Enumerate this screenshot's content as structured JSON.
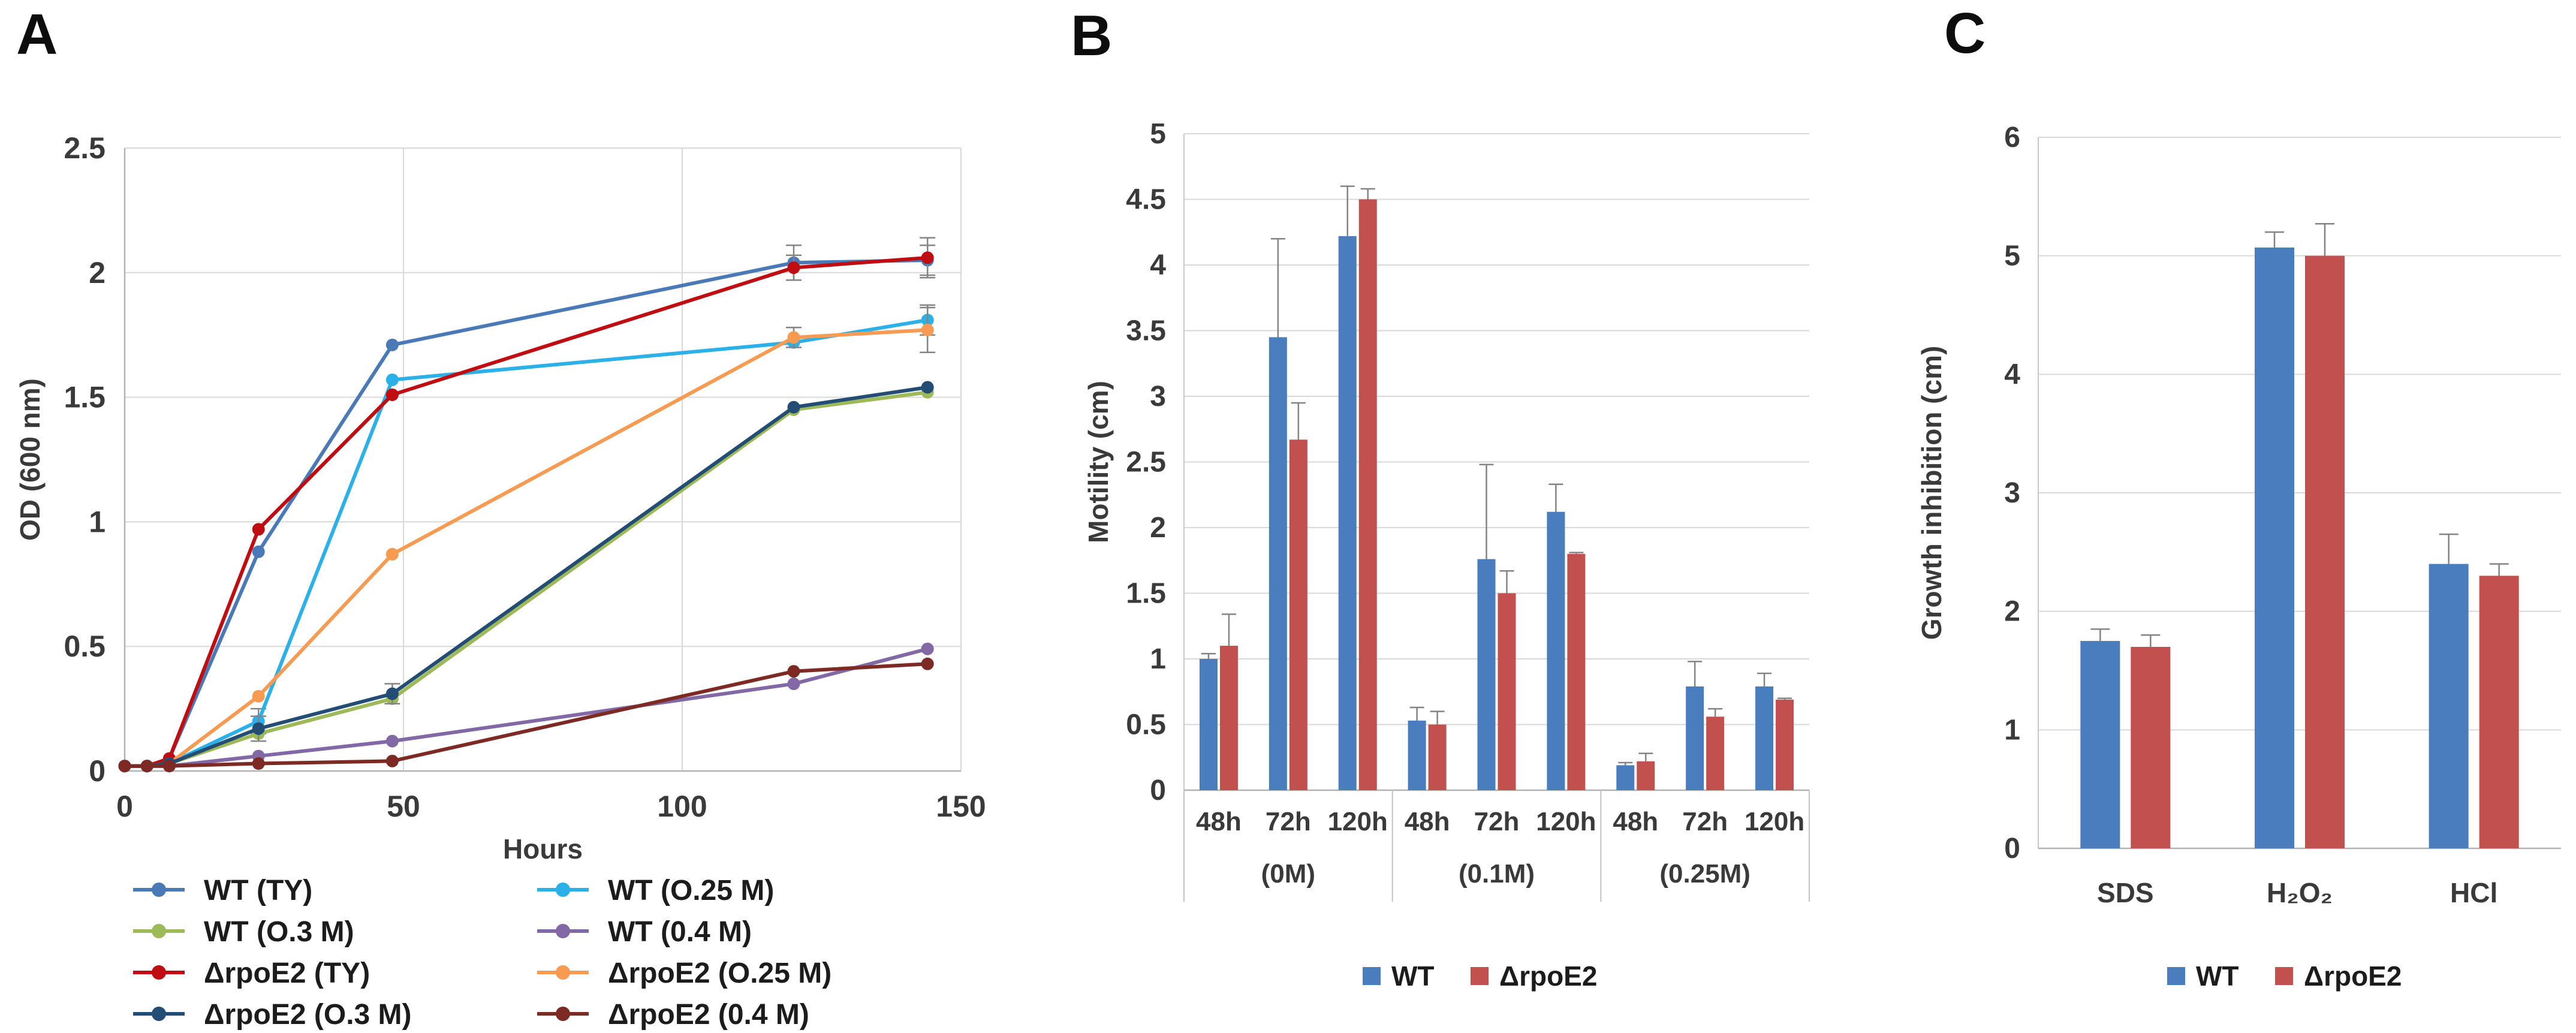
{
  "figure": {
    "background": "#ffffff",
    "grid_color": "#d9d9d9",
    "spine_color": "#b3b3b3",
    "error_bar_color": "#848484",
    "tick_text_color": "#3a3a3a"
  },
  "chart_data": [
    {
      "panel_letter": "A",
      "type": "line",
      "title": "",
      "xlabel": "Hours",
      "ylabel": "OD (600 nm)",
      "xlim": [
        0,
        150
      ],
      "ylim": [
        0,
        2.5
      ],
      "x_ticks": [
        0,
        50,
        100,
        150
      ],
      "y_ticks": [
        0,
        0.5,
        1,
        1.5,
        2,
        2.5
      ],
      "grid": true,
      "legend_position": "bottom-two-columns",
      "x": [
        0,
        4,
        8,
        24,
        48,
        120,
        144
      ],
      "series": [
        {
          "name": "WT   (TY)",
          "color": "#4a79b8",
          "values": [
            0.02,
            0.02,
            0.05,
            0.88,
            1.71,
            2.04,
            2.05
          ],
          "err": [
            0,
            0,
            0,
            0,
            0,
            0.07,
            0.06
          ]
        },
        {
          "name": "WT   (O.25 M)",
          "color": "#2bb1e7",
          "values": [
            0.02,
            0.02,
            0.03,
            0.2,
            1.57,
            1.72,
            1.81
          ],
          "err": [
            0,
            0,
            0,
            0.05,
            0,
            0,
            0.06
          ]
        },
        {
          "name": "WT  (O.3 M)",
          "color": "#9dba59",
          "values": [
            0.02,
            0.02,
            0.03,
            0.15,
            0.29,
            1.45,
            1.52
          ],
          "err": [
            0,
            0,
            0,
            0,
            0,
            0,
            0
          ]
        },
        {
          "name": "WT  (0.4 M)",
          "color": "#8268a5",
          "values": [
            0.02,
            0.02,
            0.02,
            0.06,
            0.12,
            0.35,
            0.49
          ],
          "err": [
            0,
            0,
            0,
            0,
            0,
            0,
            0
          ]
        },
        {
          "name": "ΔrpoE2  (TY)",
          "color": "#c00d11",
          "values": [
            0.02,
            0.02,
            0.05,
            0.97,
            1.51,
            2.02,
            2.06
          ],
          "err": [
            0,
            0,
            0,
            0,
            0,
            0.05,
            0.08
          ]
        },
        {
          "name": "ΔrpoE2  (O.25 M)",
          "color": "#f79b52",
          "values": [
            0.02,
            0.02,
            0.03,
            0.3,
            0.87,
            1.74,
            1.77
          ],
          "err": [
            0,
            0,
            0,
            0,
            0,
            0.04,
            0.09
          ]
        },
        {
          "name": "ΔrpoE2 (O.3 M)",
          "color": "#234d75",
          "values": [
            0.02,
            0.02,
            0.03,
            0.17,
            0.31,
            1.46,
            1.54
          ],
          "err": [
            0,
            0,
            0,
            0.05,
            0.04,
            0,
            0
          ]
        },
        {
          "name": "ΔrpoE2 (0.4 M)",
          "color": "#7e2a24",
          "values": [
            0.02,
            0.02,
            0.02,
            0.03,
            0.04,
            0.4,
            0.43
          ],
          "err": [
            0,
            0,
            0,
            0,
            0,
            0,
            0
          ]
        }
      ],
      "legend_columns": [
        [
          0,
          2,
          4,
          6
        ],
        [
          1,
          3,
          5,
          7
        ]
      ]
    },
    {
      "panel_letter": "B",
      "type": "bar",
      "title": "",
      "xlabel": "",
      "ylabel": "Motility (cm)",
      "ylim": [
        0,
        5
      ],
      "y_ticks": [
        0,
        0.5,
        1,
        1.5,
        2,
        2.5,
        3,
        3.5,
        4,
        4.5,
        5
      ],
      "grid": true,
      "legend_position": "bottom",
      "categories": [
        "48h",
        "72h",
        "120h",
        "48h",
        "72h",
        "120h",
        "48h",
        "72h",
        "120h"
      ],
      "group_labels": [
        "(0M)",
        "(0.1M)",
        "(0.25M)"
      ],
      "series": [
        {
          "name": "WT",
          "color": "#4a7dbe",
          "values": [
            1.0,
            3.45,
            4.22,
            0.53,
            1.76,
            2.12,
            0.19,
            0.79,
            0.79
          ],
          "err": [
            0.04,
            0.75,
            0.38,
            0.1,
            0.72,
            0.21,
            0.02,
            0.19,
            0.1
          ]
        },
        {
          "name": "ΔrpoE2",
          "color": "#c1504e",
          "values": [
            1.1,
            2.67,
            4.5,
            0.5,
            1.5,
            1.8,
            0.22,
            0.56,
            0.69
          ],
          "err": [
            0.24,
            0.28,
            0.08,
            0.1,
            0.17,
            0.01,
            0.06,
            0.06,
            0.01
          ]
        }
      ]
    },
    {
      "panel_letter": "C",
      "type": "bar",
      "title": "",
      "xlabel": "",
      "ylabel": "Growth inhibition (cm)",
      "ylim": [
        0,
        6
      ],
      "y_ticks": [
        0,
        1,
        2,
        3,
        4,
        5,
        6
      ],
      "grid": true,
      "legend_position": "bottom",
      "categories": [
        "SDS",
        "H₂O₂",
        "HCl"
      ],
      "series": [
        {
          "name": "WT",
          "color": "#4a7dbe",
          "values": [
            1.75,
            5.07,
            2.4
          ],
          "err": [
            0.1,
            0.13,
            0.25
          ]
        },
        {
          "name": "ΔrpoE2",
          "color": "#c1504e",
          "values": [
            1.7,
            5.0,
            2.3
          ],
          "err": [
            0.1,
            0.27,
            0.1
          ]
        }
      ]
    }
  ]
}
